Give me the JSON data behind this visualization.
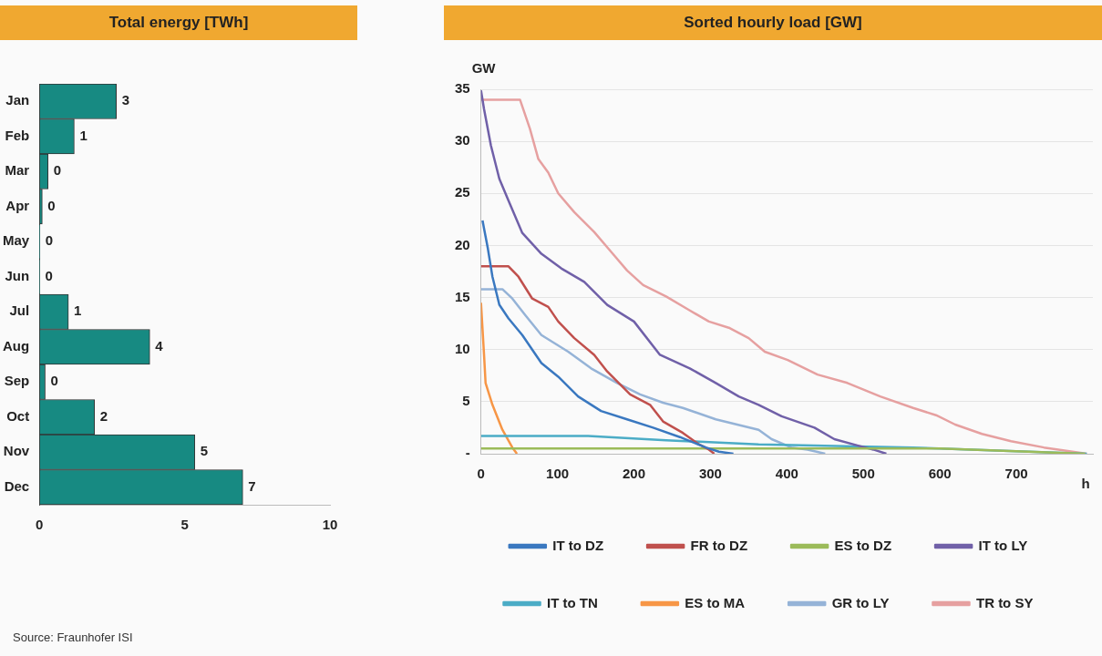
{
  "chart_data": [
    {
      "type": "bar",
      "orientation": "horizontal",
      "title": "Total energy [TWh]",
      "categories": [
        "Jan",
        "Feb",
        "Mar",
        "Apr",
        "May",
        "Jun",
        "Jul",
        "Aug",
        "Sep",
        "Oct",
        "Nov",
        "Dec"
      ],
      "values": [
        2.65,
        1.2,
        0.3,
        0.1,
        0.02,
        0.01,
        1.0,
        3.8,
        0.2,
        1.9,
        5.35,
        7.0
      ],
      "value_labels": [
        "3",
        "1",
        "0",
        "0",
        "0",
        "0",
        "1",
        "4",
        "0",
        "2",
        "5",
        "7"
      ],
      "color": "#178a82",
      "xlim": [
        0,
        10
      ],
      "xticks": [
        0,
        5,
        10
      ],
      "annotations": [
        "Source: Fraunhofer ISI"
      ]
    },
    {
      "type": "line",
      "title": "Sorted hourly load [GW]",
      "xlabel": "h",
      "ylabel": "GW",
      "xlim": [
        0,
        800
      ],
      "xticks": [
        0,
        100,
        200,
        300,
        400,
        500,
        600,
        700
      ],
      "ylim": [
        0,
        35
      ],
      "yticks": [
        {
          "value": 0,
          "label": "-"
        },
        5,
        10,
        15,
        20,
        25,
        30,
        35
      ],
      "grid": "y",
      "legend": "bottom",
      "series": [
        {
          "name": "IT to DZ",
          "color": "#3a78c0",
          "x": [
            2,
            9,
            15,
            24,
            36,
            54,
            79,
            101,
            127,
            157,
            191,
            225,
            260,
            294,
            311,
            330
          ],
          "values": [
            22.4,
            19.7,
            17,
            14.3,
            13,
            11.4,
            8.7,
            7.4,
            5.5,
            4.1,
            3.3,
            2.5,
            1.6,
            0.6,
            0.2,
            0
          ]
        },
        {
          "name": "FR to DZ",
          "color": "#c0504d",
          "x": [
            0,
            36,
            49,
            67,
            88,
            101,
            122,
            148,
            165,
            195,
            221,
            238,
            264,
            285,
            298,
            305
          ],
          "values": [
            18,
            18,
            17,
            14.9,
            14.1,
            12.7,
            11.1,
            9.5,
            7.9,
            5.7,
            4.7,
            3.1,
            2,
            0.9,
            0.4,
            0
          ]
        },
        {
          "name": "ES to DZ",
          "color": "#9bbb59",
          "x": [
            0,
            300,
            600,
            790
          ],
          "values": [
            0.5,
            0.5,
            0.5,
            0
          ]
        },
        {
          "name": "IT to LY",
          "color": "#7060a8",
          "x": [
            0,
            4,
            13,
            24,
            36,
            54,
            79,
            105,
            135,
            165,
            200,
            234,
            273,
            307,
            337,
            363,
            393,
            436,
            462,
            492,
            513,
            530
          ],
          "values": [
            34.9,
            33.1,
            29.6,
            26.4,
            24.3,
            21.2,
            19.2,
            17.8,
            16.5,
            14.3,
            12.7,
            9.5,
            8.2,
            6.8,
            5.5,
            4.7,
            3.6,
            2.5,
            1.4,
            0.8,
            0.4,
            0
          ]
        },
        {
          "name": "IT to TN",
          "color": "#4bacc6",
          "x": [
            0,
            140,
            242,
            363,
            565,
            792
          ],
          "values": [
            1.7,
            1.7,
            1.3,
            0.9,
            0.6,
            0
          ]
        },
        {
          "name": "ES to MA",
          "color": "#f79646",
          "x": [
            0,
            4,
            6,
            15,
            28,
            41,
            47
          ],
          "values": [
            14.5,
            9.5,
            6.8,
            4.7,
            2.3,
            0.6,
            0
          ]
        },
        {
          "name": "GR to LY",
          "color": "#95b3d7",
          "x": [
            0,
            28,
            41,
            58,
            79,
            114,
            144,
            178,
            208,
            238,
            264,
            307,
            363,
            380,
            406,
            427,
            450
          ],
          "values": [
            15.8,
            15.8,
            14.9,
            13.3,
            11.4,
            9.8,
            8.2,
            6.8,
            5.7,
            4.9,
            4.4,
            3.3,
            2.3,
            1.4,
            0.6,
            0.4,
            0
          ]
        },
        {
          "name": "TR to SY",
          "color": "#e6a0a0",
          "x": [
            0,
            51,
            64,
            75,
            88,
            101,
            122,
            148,
            170,
            191,
            212,
            242,
            272,
            298,
            324,
            350,
            371,
            401,
            440,
            479,
            522,
            565,
            595,
            620,
            655,
            693,
            736,
            792
          ],
          "values": [
            34,
            34,
            31.2,
            28.3,
            27,
            25,
            23.2,
            21.3,
            19.4,
            17.6,
            16.2,
            15.1,
            13.8,
            12.7,
            12.1,
            11.1,
            9.8,
            9,
            7.6,
            6.8,
            5.5,
            4.4,
            3.7,
            2.8,
            1.9,
            1.2,
            0.6,
            0
          ]
        }
      ]
    }
  ]
}
